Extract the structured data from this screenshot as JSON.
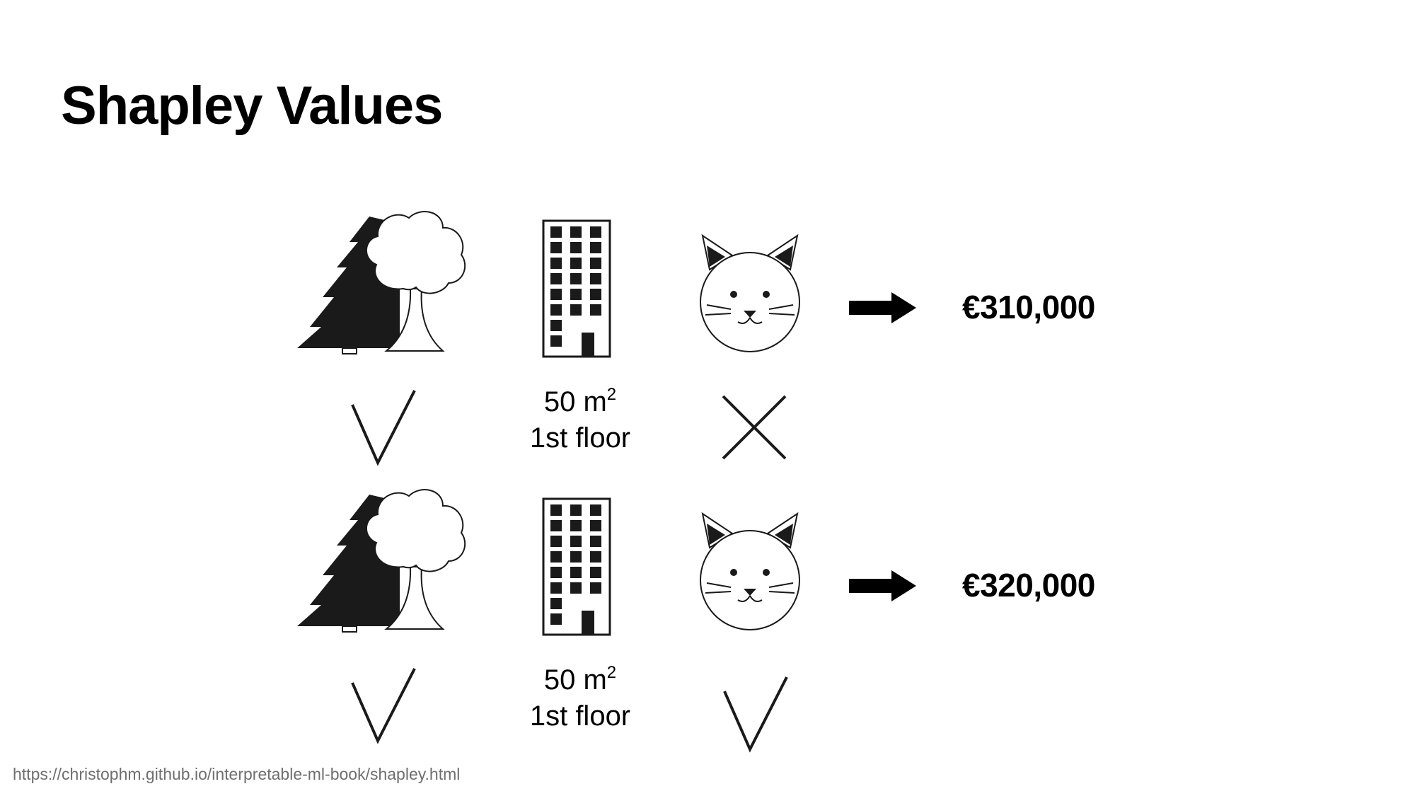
{
  "title": "Shapley Values",
  "source_url": "https://christophm.github.io/interpretable-ml-book/shapley.html",
  "scenarios": [
    {
      "park": "check",
      "area_value": "50 m",
      "area_superscript": "2",
      "floor": "1st floor",
      "cat": "cross",
      "price": "€310,000"
    },
    {
      "park": "check",
      "area_value": "50 m",
      "area_superscript": "2",
      "floor": "1st floor",
      "cat": "check",
      "price": "€320,000"
    }
  ],
  "icons": {
    "park": "trees-icon",
    "building": "apartment-building-icon",
    "cat": "cat-icon",
    "arrow": "right-arrow-icon",
    "check": "check-icon",
    "cross": "cross-icon"
  },
  "colors": {
    "text": "#000000",
    "link": "#6f6f6f",
    "icon_fill": "#1a1a1a"
  }
}
